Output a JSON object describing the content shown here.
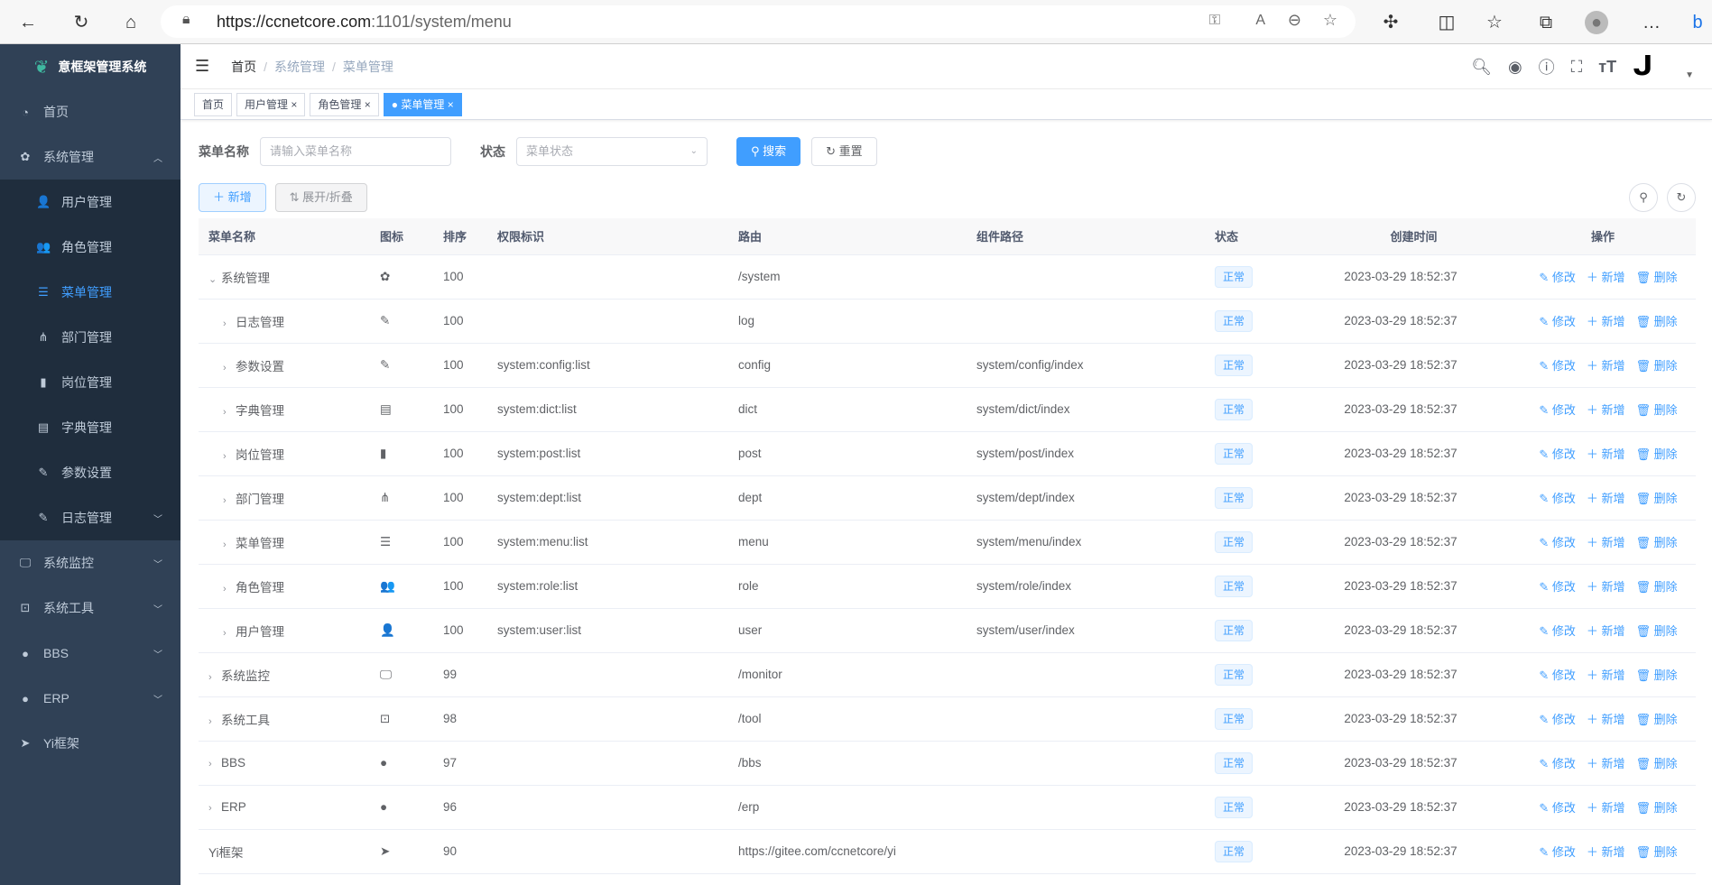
{
  "browser": {
    "url_host": "https://ccnetcore.com",
    "url_path": ":1101/system/menu"
  },
  "sidebar": {
    "title": "意框架管理系统",
    "items": [
      {
        "label": "首页",
        "icon": "dashboard-icon",
        "glyph": "◔"
      },
      {
        "label": "系统管理",
        "icon": "gear-icon",
        "glyph": "✿",
        "expanded": true,
        "children": [
          {
            "label": "用户管理",
            "icon": "user-icon",
            "glyph": "👤"
          },
          {
            "label": "角色管理",
            "icon": "peoples-icon",
            "glyph": "👥"
          },
          {
            "label": "菜单管理",
            "icon": "tree-table-icon",
            "glyph": "☰",
            "active": true
          },
          {
            "label": "部门管理",
            "icon": "tree-icon",
            "glyph": "⋔"
          },
          {
            "label": "岗位管理",
            "icon": "post-icon",
            "glyph": "▮"
          },
          {
            "label": "字典管理",
            "icon": "dict-icon",
            "glyph": "▤"
          },
          {
            "label": "参数设置",
            "icon": "edit-icon",
            "glyph": "✎"
          },
          {
            "label": "日志管理",
            "icon": "log-icon",
            "glyph": "✎",
            "arrow": true
          }
        ]
      },
      {
        "label": "系统监控",
        "icon": "monitor-icon",
        "glyph": "🖵",
        "arrow": true
      },
      {
        "label": "系统工具",
        "icon": "tool-icon",
        "glyph": "⊡",
        "arrow": true
      },
      {
        "label": "BBS",
        "icon": "globe-icon",
        "glyph": "●",
        "arrow": true
      },
      {
        "label": "ERP",
        "icon": "globe-icon",
        "glyph": "●",
        "arrow": true
      },
      {
        "label": "Yi框架",
        "icon": "send-icon",
        "glyph": "➤"
      }
    ]
  },
  "navbar": {
    "breadcrumb": [
      "首页",
      "系统管理",
      "菜单管理"
    ]
  },
  "tags": [
    {
      "label": "首页"
    },
    {
      "label": "用户管理",
      "closable": true
    },
    {
      "label": "角色管理",
      "closable": true
    },
    {
      "label": "菜单管理",
      "closable": true,
      "active": true
    }
  ],
  "search": {
    "name_label": "菜单名称",
    "name_placeholder": "请输入菜单名称",
    "status_label": "状态",
    "status_placeholder": "菜单状态",
    "search_btn": "搜索",
    "reset_btn": "重置"
  },
  "toolbar": {
    "add": "新增",
    "toggle": "展开/折叠"
  },
  "table": {
    "headers": [
      "菜单名称",
      "图标",
      "排序",
      "权限标识",
      "路由",
      "组件路径",
      "状态",
      "创建时间",
      "操作"
    ],
    "actions": {
      "edit": "修改",
      "add": "新增",
      "delete": "删除"
    },
    "rows": [
      {
        "name": "系统管理",
        "level": 0,
        "expand": "open",
        "icon": "gear-icon",
        "glyph": "✿",
        "sort": "100",
        "perms": "",
        "path": "/system",
        "component": "",
        "status": "正常",
        "time": "2023-03-29 18:52:37"
      },
      {
        "name": "日志管理",
        "level": 1,
        "expand": "closed",
        "icon": "edit-icon",
        "glyph": "✎",
        "sort": "100",
        "perms": "",
        "path": "log",
        "component": "",
        "status": "正常",
        "time": "2023-03-29 18:52:37"
      },
      {
        "name": "参数设置",
        "level": 1,
        "expand": "closed",
        "icon": "edit-icon",
        "glyph": "✎",
        "sort": "100",
        "perms": "system:config:list",
        "path": "config",
        "component": "system/config/index",
        "status": "正常",
        "time": "2023-03-29 18:52:37"
      },
      {
        "name": "字典管理",
        "level": 1,
        "expand": "closed",
        "icon": "dict-icon",
        "glyph": "▤",
        "sort": "100",
        "perms": "system:dict:list",
        "path": "dict",
        "component": "system/dict/index",
        "status": "正常",
        "time": "2023-03-29 18:52:37"
      },
      {
        "name": "岗位管理",
        "level": 1,
        "expand": "closed",
        "icon": "post-icon",
        "glyph": "▮",
        "sort": "100",
        "perms": "system:post:list",
        "path": "post",
        "component": "system/post/index",
        "status": "正常",
        "time": "2023-03-29 18:52:37"
      },
      {
        "name": "部门管理",
        "level": 1,
        "expand": "closed",
        "icon": "tree-icon",
        "glyph": "⋔",
        "sort": "100",
        "perms": "system:dept:list",
        "path": "dept",
        "component": "system/dept/index",
        "status": "正常",
        "time": "2023-03-29 18:52:37"
      },
      {
        "name": "菜单管理",
        "level": 1,
        "expand": "closed",
        "icon": "tree-table-icon",
        "glyph": "☰",
        "sort": "100",
        "perms": "system:menu:list",
        "path": "menu",
        "component": "system/menu/index",
        "status": "正常",
        "time": "2023-03-29 18:52:37"
      },
      {
        "name": "角色管理",
        "level": 1,
        "expand": "closed",
        "icon": "peoples-icon",
        "glyph": "👥",
        "sort": "100",
        "perms": "system:role:list",
        "path": "role",
        "component": "system/role/index",
        "status": "正常",
        "time": "2023-03-29 18:52:37"
      },
      {
        "name": "用户管理",
        "level": 1,
        "expand": "closed",
        "icon": "user-icon",
        "glyph": "👤",
        "sort": "100",
        "perms": "system:user:list",
        "path": "user",
        "component": "system/user/index",
        "status": "正常",
        "time": "2023-03-29 18:52:37"
      },
      {
        "name": "系统监控",
        "level": 0,
        "expand": "closed",
        "icon": "monitor-icon",
        "glyph": "🖵",
        "sort": "99",
        "perms": "",
        "path": "/monitor",
        "component": "",
        "status": "正常",
        "time": "2023-03-29 18:52:37"
      },
      {
        "name": "系统工具",
        "level": 0,
        "expand": "closed",
        "icon": "tool-icon",
        "glyph": "⊡",
        "sort": "98",
        "perms": "",
        "path": "/tool",
        "component": "",
        "status": "正常",
        "time": "2023-03-29 18:52:37"
      },
      {
        "name": "BBS",
        "level": 0,
        "expand": "closed",
        "icon": "globe-icon",
        "glyph": "●",
        "sort": "97",
        "perms": "",
        "path": "/bbs",
        "component": "",
        "status": "正常",
        "time": "2023-03-29 18:52:37"
      },
      {
        "name": "ERP",
        "level": 0,
        "expand": "closed",
        "icon": "globe-icon",
        "glyph": "●",
        "sort": "96",
        "perms": "",
        "path": "/erp",
        "component": "",
        "status": "正常",
        "time": "2023-03-29 18:52:37"
      },
      {
        "name": "Yi框架",
        "level": 0,
        "expand": "none",
        "icon": "send-icon",
        "glyph": "➤",
        "sort": "90",
        "perms": "",
        "path": "https://gitee.com/ccnetcore/yi",
        "component": "",
        "status": "正常",
        "time": "2023-03-29 18:52:37"
      }
    ]
  },
  "colors": {
    "primary": "#409eff",
    "sidebar_bg": "#304156",
    "submenu_bg": "#1f2d3d"
  }
}
